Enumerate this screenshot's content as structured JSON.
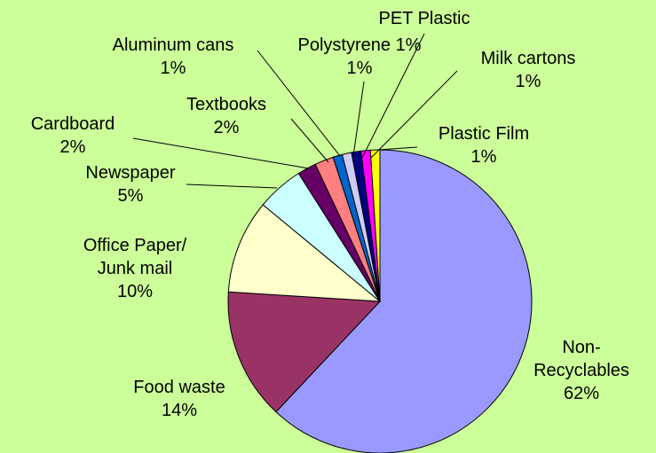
{
  "chart_data": {
    "type": "pie",
    "title": "",
    "start_angle_deg": 0,
    "direction": "clockwise",
    "slices": [
      {
        "label": "Non-Recyclables",
        "label_lines": [
          "Non-",
          "Recyclables",
          "62%"
        ],
        "value": 62,
        "display": "62%",
        "color": "#9999ff"
      },
      {
        "label": "Food waste",
        "label_lines": [
          "Food waste",
          "14%"
        ],
        "value": 14,
        "display": "14%",
        "color": "#993366"
      },
      {
        "label": "Office Paper/ Junk mail",
        "label_lines": [
          "Office Paper/",
          "Junk mail",
          "10%"
        ],
        "value": 10,
        "display": "10%",
        "color": "#ffffcc"
      },
      {
        "label": "Newspaper",
        "label_lines": [
          "Newspaper",
          "5%"
        ],
        "value": 5,
        "display": "5%",
        "color": "#ccffff"
      },
      {
        "label": "Cardboard",
        "label_lines": [
          "Cardboard",
          "2%"
        ],
        "value": 2,
        "display": "2%",
        "color": "#660066"
      },
      {
        "label": "Textbooks",
        "label_lines": [
          "Textbooks",
          "2%"
        ],
        "value": 2,
        "display": "2%",
        "color": "#ff8080"
      },
      {
        "label": "Aluminum cans",
        "label_lines": [
          "Aluminum cans",
          "1%"
        ],
        "value": 1,
        "display": "1%",
        "color": "#0066cc"
      },
      {
        "label": "Polystyrene",
        "label_lines": [
          "Polystyrene 1%",
          "1%"
        ],
        "value": 1,
        "display": "1%",
        "color": "#ccccff"
      },
      {
        "label": "PET Plastic",
        "label_lines": [
          "PET Plastic"
        ],
        "value": 1,
        "display": "1%",
        "color": "#000080"
      },
      {
        "label": "Milk cartons",
        "label_lines": [
          "Milk cartons",
          "1%"
        ],
        "value": 1,
        "display": "1%",
        "color": "#ff00ff"
      },
      {
        "label": "Plastic Film",
        "label_lines": [
          "Plastic Film",
          "1%"
        ],
        "value": 1,
        "display": "1%",
        "color": "#ffff00"
      }
    ],
    "background_color": "#ccff99",
    "legend": "none"
  }
}
